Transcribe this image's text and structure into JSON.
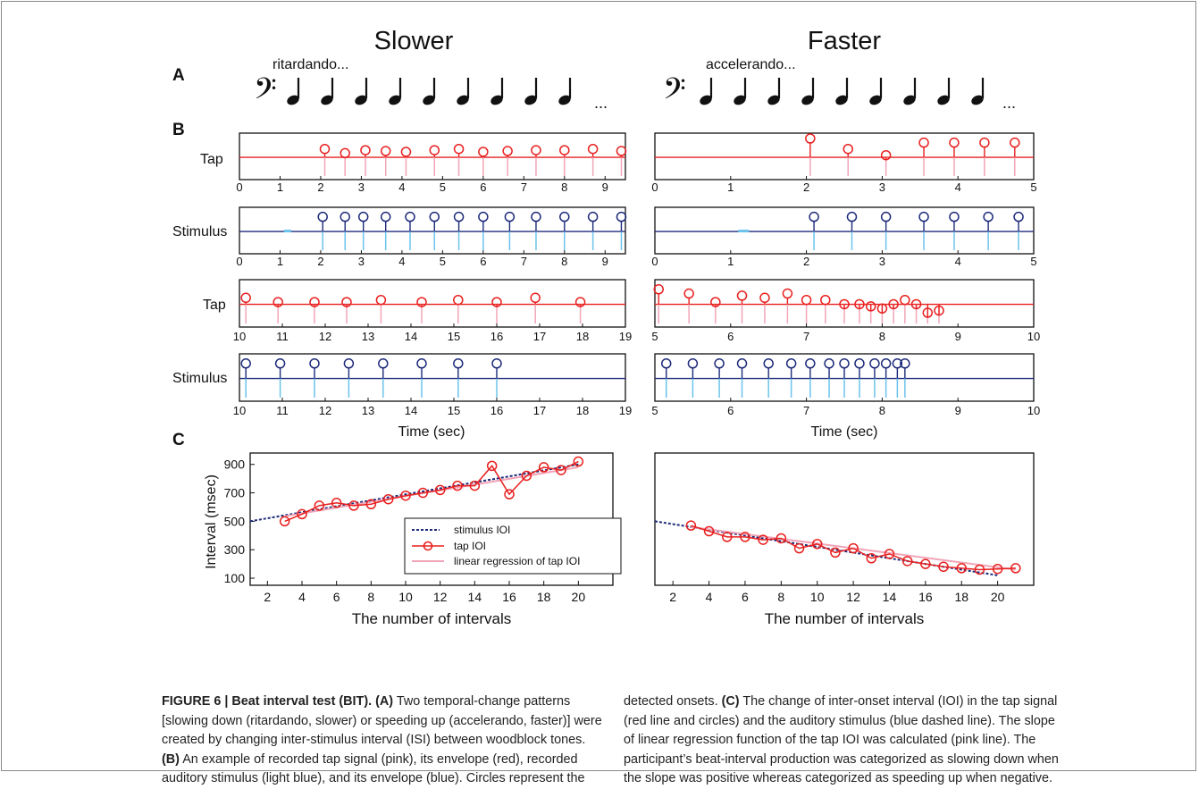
{
  "figure": {
    "column_titles": [
      "Slower",
      "Faster"
    ],
    "panel_labels": {
      "a": "A",
      "b": "B",
      "c": "C"
    },
    "tempo_words": {
      "slower": "ritardando...",
      "faster": "accelerando..."
    },
    "clef_glyph": "𝄢",
    "ellipsis": "...",
    "row_labels": {
      "tap": "Tap",
      "stimulus": "Stimulus"
    },
    "time_xlabel": "Time (sec)",
    "c_xlabel": "The number of intervals",
    "c_ylabel": "Interval (msec)",
    "legend": {
      "stimulus": "stimulus IOI",
      "tap": "tap IOI",
      "regression": "linear regression of tap IOI"
    },
    "colors": {
      "tap_envelope": "#e8201f",
      "tap_signal": "#f2a5b8",
      "stim_envelope": "#1d2a7a",
      "stim_signal": "#6cc3ec",
      "regression": "#f2a5b8",
      "stimulus_ioi": "#1d2a7a"
    }
  },
  "chart_data": [
    {
      "type": "scatter",
      "panel": "B",
      "column": "Slower",
      "row": "Tap",
      "xlim": [
        0,
        9.5
      ],
      "xticks": [
        0,
        1,
        2,
        3,
        4,
        5,
        6,
        7,
        8,
        9
      ],
      "x": [
        2.1,
        2.6,
        3.1,
        3.6,
        4.1,
        4.8,
        5.4,
        6.0,
        6.6,
        7.3,
        8.0,
        8.7,
        9.4
      ],
      "y": [
        0.75,
        0.65,
        0.72,
        0.7,
        0.68,
        0.72,
        0.75,
        0.68,
        0.7,
        0.72,
        0.72,
        0.75,
        0.7
      ]
    },
    {
      "type": "scatter",
      "panel": "B",
      "column": "Slower",
      "row": "Stimulus",
      "xlim": [
        0,
        9.5
      ],
      "xticks": [
        0,
        1,
        2,
        3,
        4,
        5,
        6,
        7,
        8,
        9
      ],
      "x": [
        2.05,
        2.6,
        3.05,
        3.6,
        4.2,
        4.8,
        5.4,
        6.0,
        6.65,
        7.3,
        8.0,
        8.7,
        9.4
      ],
      "y": [
        0.9,
        0.9,
        0.9,
        0.9,
        0.9,
        0.9,
        0.9,
        0.9,
        0.9,
        0.9,
        0.9,
        0.9,
        0.9
      ]
    },
    {
      "type": "scatter",
      "panel": "B",
      "column": "Faster",
      "row": "Tap",
      "xlim": [
        0,
        5
      ],
      "xticks": [
        0,
        1,
        2,
        3,
        4,
        5
      ],
      "x": [
        2.05,
        2.55,
        3.05,
        3.55,
        3.95,
        4.35,
        4.75
      ],
      "y": [
        1.0,
        0.75,
        0.6,
        0.9,
        0.9,
        0.9,
        0.9
      ]
    },
    {
      "type": "scatter",
      "panel": "B",
      "column": "Faster",
      "row": "Stimulus",
      "xlim": [
        0,
        5
      ],
      "xticks": [
        0,
        1,
        2,
        3,
        4,
        5
      ],
      "x": [
        2.1,
        2.6,
        3.05,
        3.55,
        3.95,
        4.4,
        4.8
      ],
      "y": [
        0.9,
        0.9,
        0.9,
        0.9,
        0.9,
        0.9,
        0.9
      ]
    },
    {
      "type": "scatter",
      "panel": "B",
      "column": "Slower",
      "row": "Tap",
      "xlim": [
        10,
        19
      ],
      "xticks": [
        10,
        11,
        12,
        13,
        14,
        15,
        16,
        17,
        18,
        19
      ],
      "x": [
        10.15,
        10.9,
        11.75,
        12.5,
        13.3,
        14.25,
        15.1,
        16.0,
        16.9,
        17.95
      ],
      "y": [
        0.7,
        0.6,
        0.6,
        0.6,
        0.65,
        0.6,
        0.65,
        0.6,
        0.7,
        0.6
      ]
    },
    {
      "type": "scatter",
      "panel": "B",
      "column": "Slower",
      "row": "Stimulus",
      "xlim": [
        10,
        19
      ],
      "xticks": [
        10,
        11,
        12,
        13,
        14,
        15,
        16,
        17,
        18,
        19
      ],
      "x": [
        10.15,
        10.95,
        11.75,
        12.55,
        13.35,
        14.25,
        15.1,
        16.0
      ],
      "y": [
        0.9,
        0.9,
        0.9,
        0.9,
        0.9,
        0.9,
        0.9,
        0.9
      ]
    },
    {
      "type": "scatter",
      "panel": "B",
      "column": "Faster",
      "row": "Tap",
      "xlim": [
        5,
        10
      ],
      "xticks": [
        5,
        6,
        7,
        8,
        9,
        10
      ],
      "x": [
        5.05,
        5.45,
        5.8,
        6.15,
        6.45,
        6.75,
        7.0,
        7.25,
        7.5,
        7.7,
        7.85,
        8.0,
        8.15,
        8.3,
        8.45,
        8.6,
        8.75
      ],
      "y": [
        0.9,
        0.8,
        0.6,
        0.75,
        0.7,
        0.8,
        0.65,
        0.65,
        0.55,
        0.55,
        0.5,
        0.45,
        0.55,
        0.65,
        0.55,
        0.35,
        0.4
      ]
    },
    {
      "type": "scatter",
      "panel": "B",
      "column": "Faster",
      "row": "Stimulus",
      "xlim": [
        5,
        10
      ],
      "xticks": [
        5,
        6,
        7,
        8,
        9,
        10
      ],
      "x": [
        5.15,
        5.5,
        5.85,
        6.15,
        6.5,
        6.8,
        7.05,
        7.3,
        7.5,
        7.7,
        7.9,
        8.05,
        8.2,
        8.3
      ],
      "y": [
        0.9,
        0.9,
        0.9,
        0.9,
        0.9,
        0.9,
        0.9,
        0.9,
        0.9,
        0.9,
        0.9,
        0.9,
        0.9,
        0.9
      ]
    },
    {
      "type": "line",
      "panel": "C",
      "column": "Slower",
      "xlim": [
        1,
        22
      ],
      "ylim": [
        50,
        980
      ],
      "xticks": [
        2,
        4,
        6,
        8,
        10,
        12,
        14,
        16,
        18,
        20
      ],
      "yticks": [
        100,
        300,
        500,
        700,
        900
      ],
      "xlabel": "The number of intervals",
      "ylabel": "Interval (msec)",
      "series": [
        {
          "name": "stimulus IOI",
          "x": [
            1,
            20
          ],
          "y": [
            500,
            900
          ]
        },
        {
          "name": "tap IOI",
          "x": [
            3,
            4,
            5,
            6,
            7,
            8,
            9,
            10,
            11,
            12,
            13,
            14,
            15,
            16,
            17,
            18,
            19,
            20
          ],
          "y": [
            500,
            550,
            610,
            630,
            610,
            620,
            655,
            680,
            700,
            720,
            750,
            750,
            890,
            690,
            820,
            880,
            860,
            920
          ]
        },
        {
          "name": "linear regression of tap IOI",
          "x": [
            3,
            20
          ],
          "y": [
            535,
            880
          ]
        }
      ]
    },
    {
      "type": "line",
      "panel": "C",
      "column": "Faster",
      "xlim": [
        1,
        22
      ],
      "ylim": [
        50,
        980
      ],
      "xticks": [
        2,
        4,
        6,
        8,
        10,
        12,
        14,
        16,
        18,
        20
      ],
      "yticks": [],
      "xlabel": "The number of intervals",
      "series": [
        {
          "name": "stimulus IOI",
          "x": [
            1,
            20
          ],
          "y": [
            500,
            120
          ]
        },
        {
          "name": "tap IOI",
          "x": [
            3,
            4,
            5,
            6,
            7,
            8,
            9,
            10,
            11,
            12,
            13,
            14,
            15,
            16,
            17,
            18,
            19,
            20,
            21
          ],
          "y": [
            470,
            430,
            390,
            390,
            370,
            380,
            310,
            340,
            280,
            310,
            240,
            270,
            220,
            200,
            180,
            170,
            160,
            165,
            170
          ]
        },
        {
          "name": "linear regression of tap IOI",
          "x": [
            3,
            21
          ],
          "y": [
            460,
            160
          ]
        }
      ]
    }
  ],
  "caption": {
    "left": [
      {
        "b": "FIGURE 6 | Beat interval test (BIT). (A)",
        "t": " Two temporal-change patterns"
      },
      {
        "b": "",
        "t": "[slowing down (ritardando, slower) or speeding up (accelerando, faster)] were"
      },
      {
        "b": "",
        "t": "created by changing inter-stimulus interval (ISI) between woodblock tones."
      },
      {
        "b": "(B)",
        "t": " An example of recorded tap signal (pink), its envelope (red), recorded"
      },
      {
        "b": "",
        "t": "auditory stimulus (light blue), and its envelope (blue). Circles represent the"
      }
    ],
    "right": [
      {
        "t1": "detected onsets. ",
        "b": "(C)",
        "t2": " The change of inter-onset interval (IOI) in the tap signal"
      },
      {
        "t1": "(red line and circles) and the auditory stimulus (blue dashed line). The slope",
        "b": "",
        "t2": ""
      },
      {
        "t1": "of linear regression function of the tap IOI was calculated (pink line). The",
        "b": "",
        "t2": ""
      },
      {
        "t1": "participant’s beat-interval production was categorized as slowing down when",
        "b": "",
        "t2": ""
      },
      {
        "t1": "the slope was positive whereas categorized as speeding up when negative.",
        "b": "",
        "t2": ""
      }
    ]
  }
}
